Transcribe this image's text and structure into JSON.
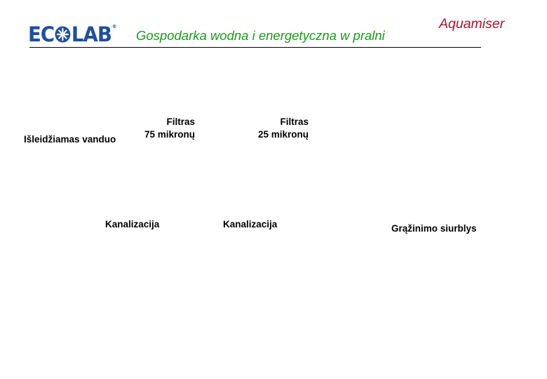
{
  "header": {
    "logo_text": "ECOLAB",
    "title": "Gospodarka wodna i energetyczna w pralni",
    "brand": "Aquamiser",
    "colors": {
      "logo": "#1f4f9c",
      "title": "#1a9a1a",
      "brand": "#b01030"
    }
  },
  "labels": {
    "discharge": "Išleidžiamas vanduo",
    "filter75_line1": "Filtras",
    "filter75_line2": "75 mikronų",
    "filter25_line1": "Filtras",
    "filter25_line2": "25 mikronų",
    "sewer1": "Kanalizacija",
    "sewer2": "Kanalizacija",
    "return_pump": "Grąžinimo siurblys"
  }
}
